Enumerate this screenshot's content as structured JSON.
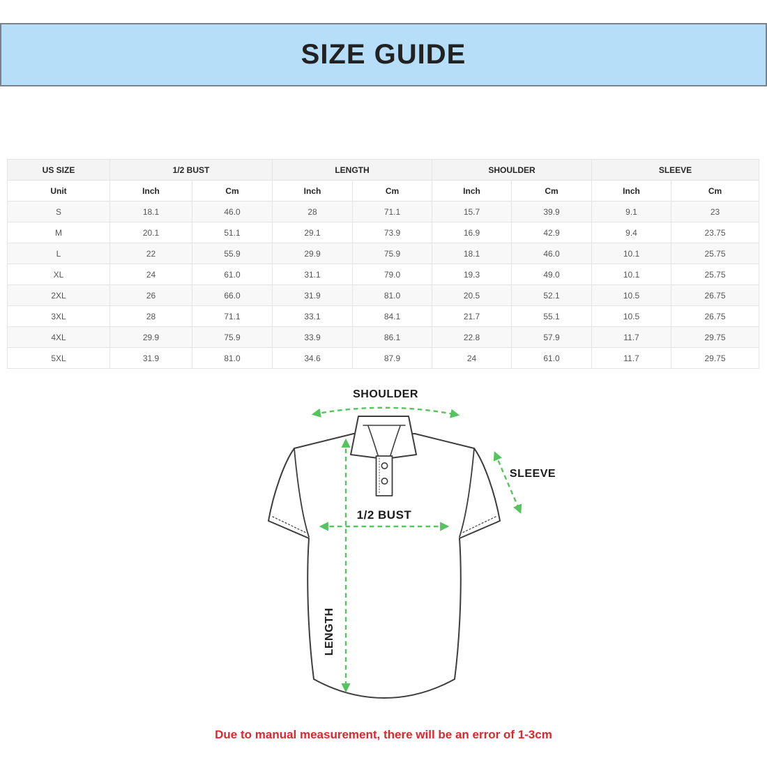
{
  "banner": {
    "title": "SIZE GUIDE"
  },
  "table": {
    "group_headers": [
      {
        "label": "US SIZE",
        "span": 1
      },
      {
        "label": "1/2 BUST",
        "span": 2
      },
      {
        "label": "LENGTH",
        "span": 2
      },
      {
        "label": "SHOULDER",
        "span": 2
      },
      {
        "label": "SLEEVE",
        "span": 2
      }
    ],
    "unit_row": [
      "Unit",
      "Inch",
      "Cm",
      "Inch",
      "Cm",
      "Inch",
      "Cm",
      "Inch",
      "Cm"
    ],
    "rows": [
      [
        "S",
        "18.1",
        "46.0",
        "28",
        "71.1",
        "15.7",
        "39.9",
        "9.1",
        "23"
      ],
      [
        "M",
        "20.1",
        "51.1",
        "29.1",
        "73.9",
        "16.9",
        "42.9",
        "9.4",
        "23.75"
      ],
      [
        "L",
        "22",
        "55.9",
        "29.9",
        "75.9",
        "18.1",
        "46.0",
        "10.1",
        "25.75"
      ],
      [
        "XL",
        "24",
        "61.0",
        "31.1",
        "79.0",
        "19.3",
        "49.0",
        "10.1",
        "25.75"
      ],
      [
        "2XL",
        "26",
        "66.0",
        "31.9",
        "81.0",
        "20.5",
        "52.1",
        "10.5",
        "26.75"
      ],
      [
        "3XL",
        "28",
        "71.1",
        "33.1",
        "84.1",
        "21.7",
        "55.1",
        "10.5",
        "26.75"
      ],
      [
        "4XL",
        "29.9",
        "75.9",
        "33.9",
        "86.1",
        "22.8",
        "57.9",
        "11.7",
        "29.75"
      ],
      [
        "5XL",
        "31.9",
        "81.0",
        "34.6",
        "87.9",
        "24",
        "61.0",
        "11.7",
        "29.75"
      ]
    ]
  },
  "diagram": {
    "labels": {
      "shoulder": "SHOULDER",
      "sleeve": "SLEEVE",
      "bust": "1/2 BUST",
      "length": "LENGTH"
    }
  },
  "footer": {
    "note": "Due to manual measurement, there will be an error of 1-3cm"
  },
  "colors": {
    "banner_bg": "#b7def8",
    "banner_border": "#7b828b",
    "accent_green": "#55c35e",
    "note_red": "#e3242b",
    "shirt_outline": "#3d3d3d"
  }
}
